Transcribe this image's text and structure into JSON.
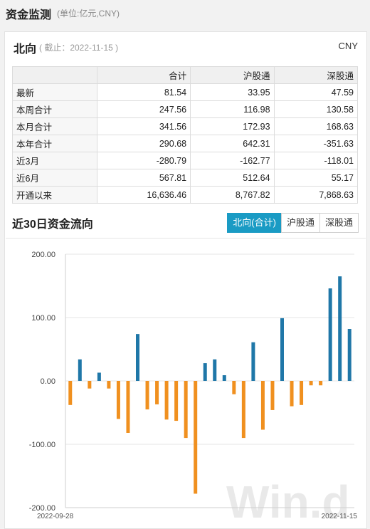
{
  "header": {
    "title": "资金监测",
    "unit_note": "(单位:亿元,CNY)"
  },
  "north": {
    "title": "北向",
    "as_of": "( 截止：2022-11-15 )",
    "currency": "CNY",
    "columns": [
      "",
      "合计",
      "沪股通",
      "深股通"
    ],
    "rows": [
      {
        "label": "最新",
        "cells": [
          "81.54",
          "33.95",
          "47.59"
        ]
      },
      {
        "label": "本周合计",
        "cells": [
          "247.56",
          "116.98",
          "130.58"
        ]
      },
      {
        "label": "本月合计",
        "cells": [
          "341.56",
          "172.93",
          "168.63"
        ]
      },
      {
        "label": "本年合计",
        "cells": [
          "290.68",
          "642.31",
          "-351.63"
        ]
      },
      {
        "label": "近3月",
        "cells": [
          "-280.79",
          "-162.77",
          "-118.01"
        ]
      },
      {
        "label": "近6月",
        "cells": [
          "567.81",
          "512.64",
          "55.17"
        ]
      },
      {
        "label": "开通以来",
        "cells": [
          "16,636.46",
          "8,767.82",
          "7,868.63"
        ]
      }
    ]
  },
  "flow": {
    "title": "近30日资金流向",
    "tabs": [
      "北向(合计)",
      "沪股通",
      "深股通"
    ],
    "active_tab": "北向(合计)"
  },
  "chart_data": {
    "type": "bar",
    "title": "",
    "x_start_label": "2022-09-28",
    "x_end_label": "2022-11-15",
    "values": [
      -38,
      34,
      -12,
      13,
      -12,
      -60,
      -82,
      74,
      -45,
      -37,
      -61,
      -63,
      -90,
      -178,
      28,
      34,
      9,
      -21,
      -90,
      61,
      -77,
      -46,
      99,
      -40,
      -38,
      -7,
      -7,
      146,
      165,
      82
    ],
    "ylim": [
      -200,
      200
    ],
    "yticks": [
      "200.00",
      "100.00",
      "0.00",
      "-100.00",
      "-200.00"
    ],
    "ytick_values": [
      200,
      100,
      0,
      -100,
      -200
    ],
    "grid": true,
    "colors": {
      "positive": "#1f77a8",
      "negative": "#f0901f"
    },
    "watermark": "Win.d"
  }
}
